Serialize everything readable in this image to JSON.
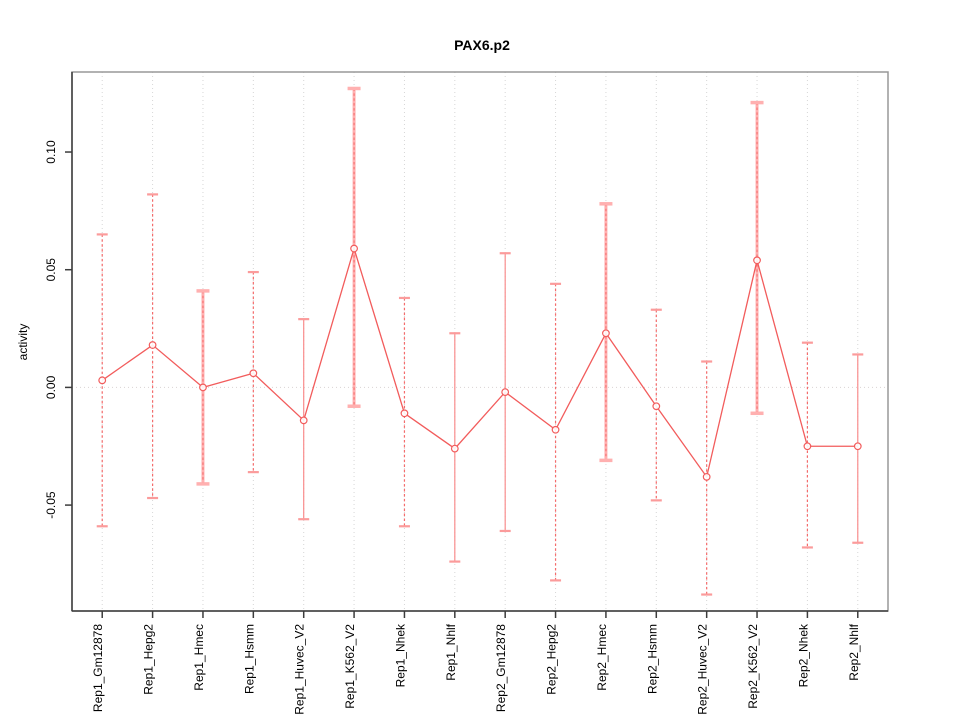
{
  "window": {
    "title": "PAX6.p2"
  },
  "chart_data": {
    "type": "line",
    "title": "PAX6.p2",
    "xlabel": "",
    "ylabel": "activity",
    "categories": [
      "Rep1_Gm12878",
      "Rep1_Hepg2",
      "Rep1_Hmec",
      "Rep1_Hsmm",
      "Rep1_Huvec_V2",
      "Rep1_K562_V2",
      "Rep1_Nhek",
      "Rep1_Nhlf",
      "Rep2_Gm12878",
      "Rep2_Hepg2",
      "Rep2_Hmec",
      "Rep2_Hsmm",
      "Rep2_Huvec_V2",
      "Rep2_K562_V2",
      "Rep2_Nhek",
      "Rep2_Nhlf"
    ],
    "series": [
      {
        "name": "mean activity",
        "values": [
          0.003,
          0.018,
          0.0,
          0.006,
          -0.014,
          0.059,
          -0.011,
          -0.026,
          -0.002,
          -0.018,
          0.023,
          -0.008,
          -0.038,
          0.054,
          -0.025,
          -0.025
        ]
      },
      {
        "name": "upper error bound",
        "values": [
          0.065,
          0.082,
          0.041,
          0.049,
          0.029,
          0.127,
          0.038,
          0.023,
          0.057,
          0.044,
          0.078,
          0.033,
          0.011,
          0.121,
          0.019,
          0.014
        ]
      },
      {
        "name": "lower error bound",
        "values": [
          -0.059,
          -0.047,
          -0.041,
          -0.036,
          -0.056,
          -0.008,
          -0.059,
          -0.074,
          -0.061,
          -0.082,
          -0.031,
          -0.048,
          -0.088,
          -0.011,
          -0.068,
          -0.066
        ]
      }
    ],
    "error_bar_styles": [
      "dashed",
      "dashed",
      "thick",
      "dashed",
      "solid",
      "thick",
      "dashed",
      "solid",
      "solid",
      "dashed",
      "thick",
      "dashed",
      "dashed",
      "thick",
      "dashed",
      "solid"
    ],
    "marker": "open-circle",
    "yticks": [
      -0.05,
      0.0,
      0.05,
      0.1
    ],
    "ytick_labels": [
      "-0.05",
      "0.00",
      "0.05",
      "0.10"
    ],
    "ylim": [
      -0.095,
      0.134
    ],
    "grid": "vertical dotted gridline at each category; dotted horizontal line at y=0",
    "legend": "none",
    "colors": {
      "line": "#f25c5c",
      "marker": "#f25c5c",
      "errorbar_dashed": "#f56b6b",
      "errorbar_solid": "#f98d8d",
      "errorbar_thick": "#ffb0b0",
      "errorbar_cap": "#fb9b9b",
      "gridline": "#d6d6d6",
      "zero_line": "#d9d2d2",
      "axis": "#3c3c3c",
      "border": "#989898",
      "text": "#000000"
    }
  }
}
